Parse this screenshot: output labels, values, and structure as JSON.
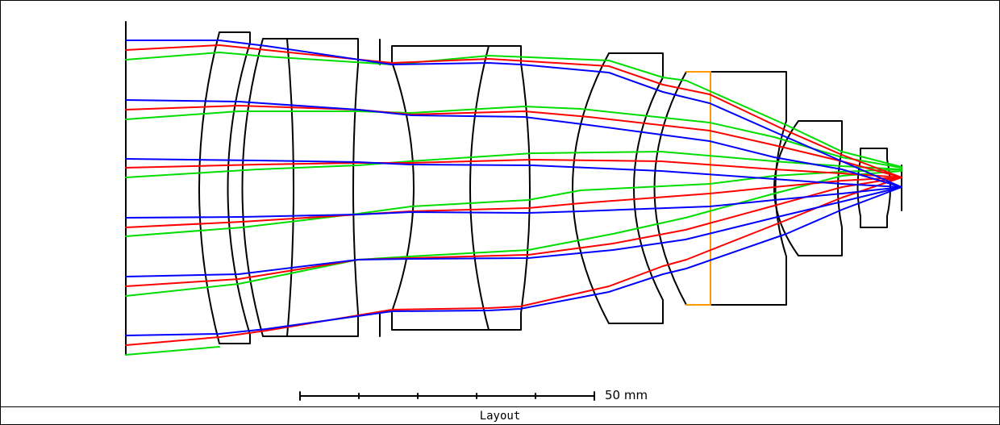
{
  "footer": {
    "title": "Layout"
  },
  "scale_bar": {
    "label": "50 mm",
    "length_mm": 50,
    "ticks": 5
  },
  "colors": {
    "outline": "#000000",
    "field_1": "#0000ff",
    "field_2": "#ff0000",
    "field_3": "#00dd00",
    "filter": "#ff9900"
  },
  "legend_fields": [
    "blue-ray",
    "red-ray",
    "green-ray"
  ]
}
